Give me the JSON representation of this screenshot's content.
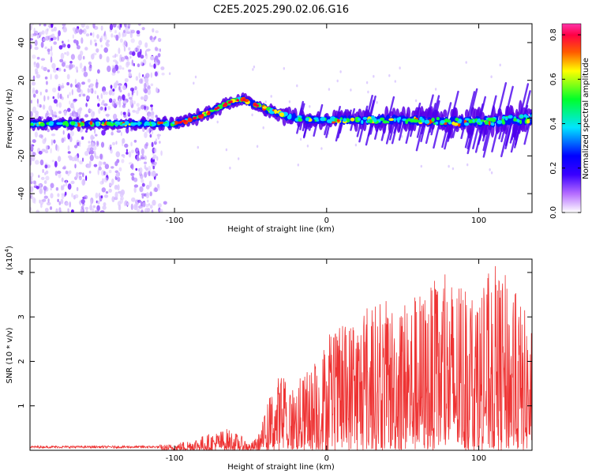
{
  "chart_data": [
    {
      "type": "heatmap",
      "title": "C2E5.2025.290.02.06.G16",
      "xlabel": "Height of straight line (km)",
      "ylabel": "Frequency (Hz)",
      "xlim": [
        -195,
        135
      ],
      "ylim": [
        -50,
        50
      ],
      "xticks": [
        -100,
        0,
        100
      ],
      "yticks": [
        -40,
        -20,
        0,
        20,
        40
      ],
      "ridge": {
        "x": [
          -195,
          -150,
          -110,
          -100,
          -90,
          -80,
          -70,
          -62,
          -55,
          -50,
          -40,
          -30,
          -20,
          -10,
          0,
          20,
          40,
          60,
          80,
          100,
          120,
          135
        ],
        "freq": [
          -3,
          -3,
          -3,
          -3,
          -1,
          2,
          6,
          9,
          10,
          8,
          5,
          2,
          0,
          -1,
          -1,
          -1,
          -1,
          -1,
          -2,
          -2,
          -1,
          0
        ]
      },
      "colorbar": {
        "label": "Normalized spectral amplitude",
        "range": [
          0,
          0.85
        ],
        "ticks": [
          "0.0",
          "0.2",
          "0.4",
          "0.6",
          "0.8"
        ],
        "colors": [
          "#ffffff",
          "#b56cff",
          "#3a00ff",
          "#0000ff",
          "#00e5ff",
          "#00ff2a",
          "#ffff00",
          "#ff5a00",
          "#ff0044",
          "#ff33aa"
        ]
      }
    },
    {
      "type": "line",
      "title": "",
      "xlabel": "Height of straight line (km)",
      "ylabel": "SNR (10 * v/v)",
      "exponent_label": "(x10",
      "exponent_power": "4",
      "exponent_close": ")",
      "xlim": [
        -195,
        135
      ],
      "ylim": [
        0,
        4.3
      ],
      "xticks": [
        -100,
        0,
        100
      ],
      "yticks": [
        1,
        2,
        3,
        4
      ],
      "color": "#ee3333",
      "envelope": {
        "x": [
          -195,
          -120,
          -100,
          -90,
          -80,
          -70,
          -65,
          -55,
          -50,
          -45,
          -40,
          -35,
          -30,
          -25,
          -20,
          -15,
          -10,
          -5,
          0,
          10,
          20,
          30,
          40,
          50,
          60,
          70,
          80,
          90,
          100,
          110,
          120,
          130,
          135
        ],
        "snr_max": [
          0.1,
          0.1,
          0.15,
          0.25,
          0.35,
          0.45,
          0.5,
          0.3,
          0.15,
          0.35,
          0.9,
          1.5,
          1.8,
          1.4,
          1.6,
          1.7,
          1.9,
          2.2,
          2.6,
          2.8,
          3.2,
          3.3,
          3.4,
          3.5,
          3.6,
          3.8,
          4.0,
          3.8,
          3.6,
          4.2,
          3.9,
          3.2,
          3.0
        ]
      }
    }
  ]
}
